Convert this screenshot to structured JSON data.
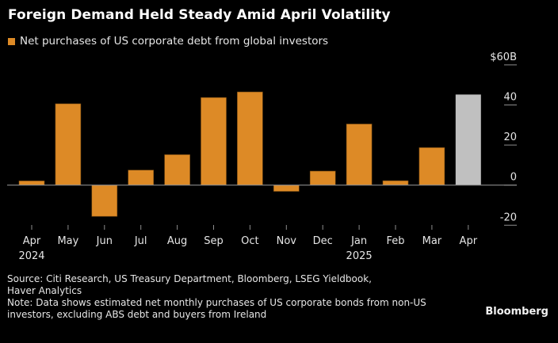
{
  "chart_data": {
    "type": "bar",
    "title": "Foreign Demand Held Steady Amid April Volatility",
    "legend": [
      {
        "label": "Net purchases of US corporate debt from global investors",
        "color": "#dd8a26"
      }
    ],
    "legend_position": "top-left",
    "categories": [
      "Apr",
      "May",
      "Jun",
      "Jul",
      "Aug",
      "Sep",
      "Oct",
      "Nov",
      "Dec",
      "Jan",
      "Feb",
      "Mar",
      "Apr"
    ],
    "category_sublabels": [
      "2024",
      "",
      "",
      "",
      "",
      "",
      "",
      "",
      "",
      "2025",
      "",
      "",
      ""
    ],
    "values": [
      2.1,
      40.6,
      -15.6,
      7.5,
      15.2,
      43.7,
      46.5,
      -3.1,
      7.0,
      30.5,
      2.2,
      18.7,
      45.2
    ],
    "bar_colors": [
      "#dd8a26",
      "#dd8a26",
      "#dd8a26",
      "#dd8a26",
      "#dd8a26",
      "#dd8a26",
      "#dd8a26",
      "#dd8a26",
      "#dd8a26",
      "#dd8a26",
      "#dd8a26",
      "#dd8a26",
      "#c0c0c0"
    ],
    "xlabel": "",
    "ylabel": "",
    "ylim": [
      -20,
      60
    ],
    "y_ticks": [
      -20,
      0,
      20,
      40,
      60
    ],
    "y_tick_labels": [
      "-20",
      "0",
      "20",
      "40",
      "$60B"
    ],
    "y_axis_side": "right",
    "grid": false
  },
  "source_lines": [
    "Source: Citi Research, US Treasury Department, Bloomberg, LSEG Yieldbook,",
    "Haver Analytics",
    "Note: Data shows estimated net monthly purchases of US corporate bonds from non-US",
    "investors, excluding ABS debt and buyers from Ireland"
  ],
  "brand": "Bloomberg"
}
